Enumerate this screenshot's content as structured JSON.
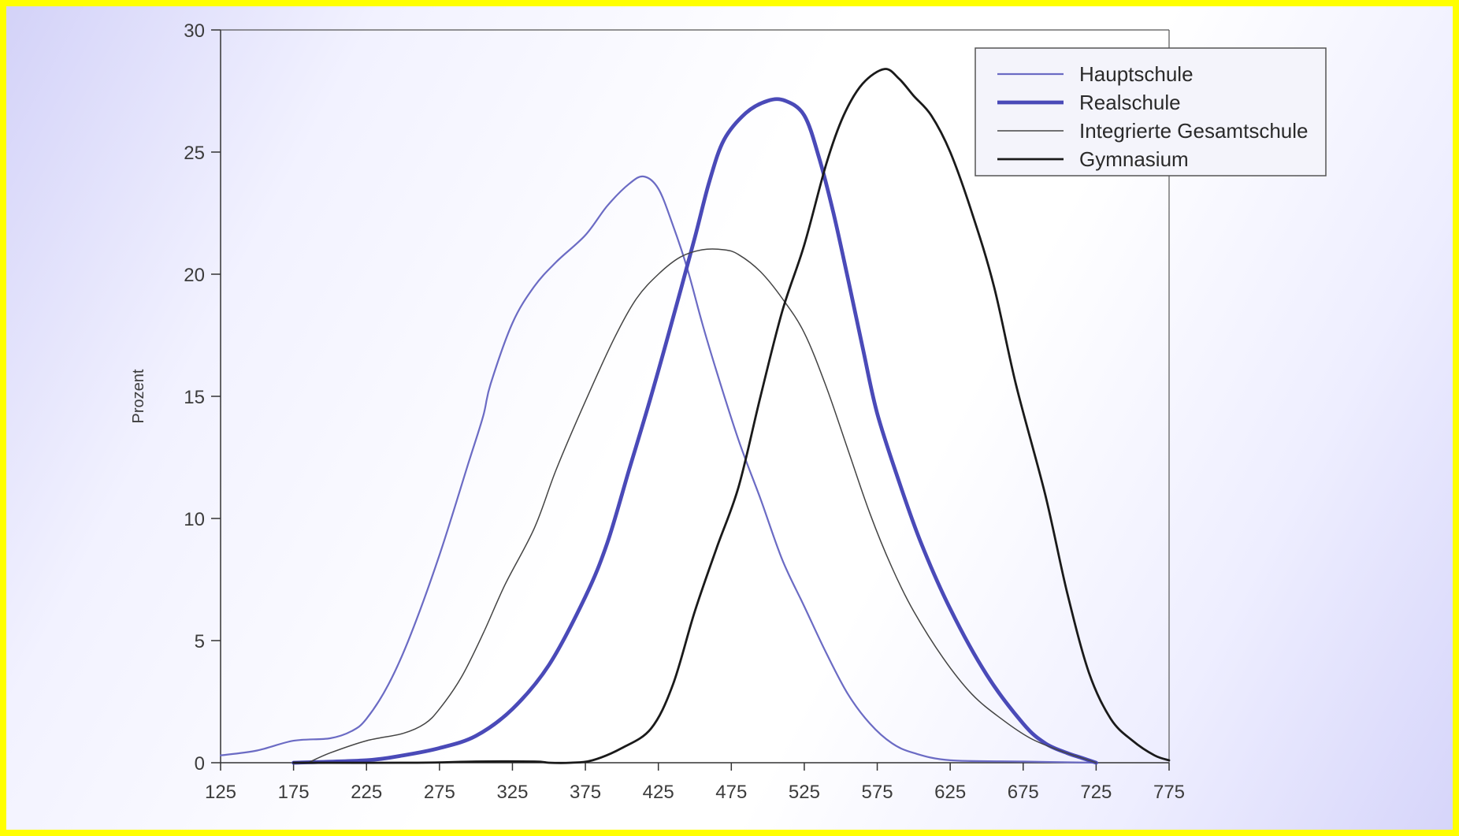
{
  "chart_data": {
    "type": "line",
    "ylabel": "Prozent",
    "xlim": [
      125,
      775
    ],
    "ylim": [
      0,
      30
    ],
    "x_ticks": [
      "125",
      "175",
      "225",
      "275",
      "325",
      "375",
      "425",
      "475",
      "525",
      "575",
      "625",
      "675",
      "725",
      "775"
    ],
    "y_ticks": [
      "0",
      "5",
      "10",
      "15",
      "20",
      "25",
      "30"
    ],
    "grid": false,
    "legend_position": "top-right",
    "series": [
      {
        "name": "Hauptschule",
        "color": "#6b6bc4",
        "points": [
          [
            125,
            0.3
          ],
          [
            150,
            0.5
          ],
          [
            175,
            0.9
          ],
          [
            200,
            1.0
          ],
          [
            215,
            1.3
          ],
          [
            225,
            1.8
          ],
          [
            240,
            3.2
          ],
          [
            255,
            5.2
          ],
          [
            275,
            8.5
          ],
          [
            295,
            12.3
          ],
          [
            305,
            14.2
          ],
          [
            310,
            15.5
          ],
          [
            325,
            18.0
          ],
          [
            340,
            19.5
          ],
          [
            355,
            20.5
          ],
          [
            375,
            21.6
          ],
          [
            390,
            22.8
          ],
          [
            405,
            23.7
          ],
          [
            415,
            24.0
          ],
          [
            425,
            23.5
          ],
          [
            435,
            22.0
          ],
          [
            445,
            20.2
          ],
          [
            455,
            18.0
          ],
          [
            465,
            16.0
          ],
          [
            480,
            13.2
          ],
          [
            495,
            10.8
          ],
          [
            510,
            8.3
          ],
          [
            525,
            6.4
          ],
          [
            540,
            4.5
          ],
          [
            555,
            2.8
          ],
          [
            570,
            1.6
          ],
          [
            585,
            0.8
          ],
          [
            600,
            0.4
          ],
          [
            625,
            0.1
          ],
          [
            675,
            0.05
          ],
          [
            725,
            0.0
          ]
        ]
      },
      {
        "name": "Realschule",
        "color": "#4a4ab8",
        "points": [
          [
            175,
            0.0
          ],
          [
            225,
            0.1
          ],
          [
            250,
            0.3
          ],
          [
            275,
            0.6
          ],
          [
            300,
            1.1
          ],
          [
            325,
            2.2
          ],
          [
            350,
            4.0
          ],
          [
            375,
            6.8
          ],
          [
            390,
            9.0
          ],
          [
            405,
            12.0
          ],
          [
            420,
            15.0
          ],
          [
            435,
            18.2
          ],
          [
            450,
            21.5
          ],
          [
            460,
            23.8
          ],
          [
            470,
            25.5
          ],
          [
            485,
            26.6
          ],
          [
            500,
            27.1
          ],
          [
            512,
            27.1
          ],
          [
            525,
            26.5
          ],
          [
            535,
            24.8
          ],
          [
            545,
            22.5
          ],
          [
            555,
            19.8
          ],
          [
            565,
            17.0
          ],
          [
            575,
            14.3
          ],
          [
            590,
            11.5
          ],
          [
            605,
            9.0
          ],
          [
            625,
            6.3
          ],
          [
            650,
            3.6
          ],
          [
            675,
            1.6
          ],
          [
            690,
            0.8
          ],
          [
            705,
            0.4
          ],
          [
            715,
            0.2
          ],
          [
            725,
            0.0
          ]
        ]
      },
      {
        "name": "Integrierte Gesamtschule",
        "color": "#444444",
        "points": [
          [
            185,
            0.0
          ],
          [
            200,
            0.4
          ],
          [
            225,
            0.9
          ],
          [
            250,
            1.2
          ],
          [
            265,
            1.6
          ],
          [
            275,
            2.2
          ],
          [
            290,
            3.5
          ],
          [
            305,
            5.3
          ],
          [
            320,
            7.3
          ],
          [
            340,
            9.6
          ],
          [
            355,
            12.0
          ],
          [
            375,
            14.8
          ],
          [
            395,
            17.4
          ],
          [
            410,
            19.0
          ],
          [
            425,
            20.0
          ],
          [
            440,
            20.7
          ],
          [
            455,
            21.0
          ],
          [
            470,
            21.0
          ],
          [
            480,
            20.8
          ],
          [
            495,
            20.1
          ],
          [
            510,
            19.0
          ],
          [
            525,
            17.6
          ],
          [
            540,
            15.4
          ],
          [
            555,
            12.8
          ],
          [
            570,
            10.2
          ],
          [
            585,
            8.0
          ],
          [
            600,
            6.2
          ],
          [
            620,
            4.3
          ],
          [
            640,
            2.8
          ],
          [
            660,
            1.8
          ],
          [
            680,
            1.0
          ],
          [
            700,
            0.5
          ],
          [
            715,
            0.2
          ],
          [
            725,
            0.0
          ]
        ]
      },
      {
        "name": "Gymnasium",
        "color": "#1a1a1a",
        "points": [
          [
            175,
            0.0
          ],
          [
            260,
            0.0
          ],
          [
            300,
            0.05
          ],
          [
            340,
            0.05
          ],
          [
            350,
            0.0
          ],
          [
            365,
            0.0
          ],
          [
            380,
            0.1
          ],
          [
            400,
            0.6
          ],
          [
            420,
            1.4
          ],
          [
            435,
            3.2
          ],
          [
            450,
            6.2
          ],
          [
            465,
            8.8
          ],
          [
            480,
            11.3
          ],
          [
            495,
            15.0
          ],
          [
            510,
            18.5
          ],
          [
            525,
            21.2
          ],
          [
            540,
            24.5
          ],
          [
            552,
            26.5
          ],
          [
            565,
            27.8
          ],
          [
            580,
            28.4
          ],
          [
            590,
            28.0
          ],
          [
            600,
            27.3
          ],
          [
            612,
            26.5
          ],
          [
            625,
            25.0
          ],
          [
            640,
            22.5
          ],
          [
            655,
            19.5
          ],
          [
            670,
            15.5
          ],
          [
            690,
            11.0
          ],
          [
            705,
            7.0
          ],
          [
            720,
            3.7
          ],
          [
            735,
            1.8
          ],
          [
            750,
            0.9
          ],
          [
            765,
            0.3
          ],
          [
            775,
            0.1
          ]
        ]
      }
    ]
  }
}
